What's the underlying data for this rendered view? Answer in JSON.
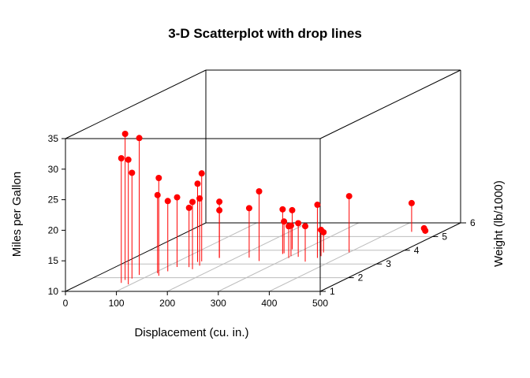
{
  "chart_data": {
    "type": "scatter",
    "title": "3-D Scatterplot with drop lines",
    "xlabel": "Displacement (cu. in.)",
    "ylabel": "Weight (lb/1000)",
    "zlabel": "Miles per Gallon",
    "xlim": [
      0,
      500
    ],
    "ylim": [
      1,
      6
    ],
    "zlim": [
      10,
      35
    ],
    "x_ticks": [
      0,
      100,
      200,
      300,
      400,
      500
    ],
    "y_ticks": [
      1,
      2,
      3,
      4,
      5,
      6
    ],
    "z_ticks": [
      10,
      15,
      20,
      25,
      30,
      35
    ],
    "grid": true,
    "point_color": "#ff0000",
    "drop_line_color": "#ff0000",
    "points": [
      {
        "x": 160,
        "y": 2.62,
        "z": 21.0
      },
      {
        "x": 160,
        "y": 2.875,
        "z": 21.0
      },
      {
        "x": 108,
        "y": 2.32,
        "z": 22.8
      },
      {
        "x": 258,
        "y": 3.215,
        "z": 21.4
      },
      {
        "x": 360,
        "y": 3.44,
        "z": 18.7
      },
      {
        "x": 225,
        "y": 3.46,
        "z": 18.1
      },
      {
        "x": 360,
        "y": 3.57,
        "z": 14.3
      },
      {
        "x": 146.7,
        "y": 3.19,
        "z": 24.4
      },
      {
        "x": 140.8,
        "y": 3.15,
        "z": 22.8
      },
      {
        "x": 167.6,
        "y": 3.44,
        "z": 19.2
      },
      {
        "x": 167.6,
        "y": 3.44,
        "z": 17.8
      },
      {
        "x": 275.8,
        "y": 4.07,
        "z": 16.4
      },
      {
        "x": 275.8,
        "y": 3.73,
        "z": 17.3
      },
      {
        "x": 275.8,
        "y": 3.78,
        "z": 15.2
      },
      {
        "x": 472,
        "y": 5.25,
        "z": 10.4
      },
      {
        "x": 460,
        "y": 5.424,
        "z": 10.4
      },
      {
        "x": 440,
        "y": 5.345,
        "z": 14.7
      },
      {
        "x": 78.7,
        "y": 2.2,
        "z": 32.4
      },
      {
        "x": 75.7,
        "y": 1.615,
        "z": 30.4
      },
      {
        "x": 71.1,
        "y": 1.835,
        "z": 33.9
      },
      {
        "x": 120.1,
        "y": 2.465,
        "z": 21.5
      },
      {
        "x": 318,
        "y": 3.52,
        "z": 15.5
      },
      {
        "x": 304,
        "y": 3.435,
        "z": 15.2
      },
      {
        "x": 350,
        "y": 3.84,
        "z": 13.3
      },
      {
        "x": 400,
        "y": 3.845,
        "z": 19.2
      },
      {
        "x": 79,
        "y": 1.935,
        "z": 27.3
      },
      {
        "x": 120.3,
        "y": 2.14,
        "z": 26.0
      },
      {
        "x": 95.1,
        "y": 1.513,
        "z": 30.4
      },
      {
        "x": 351,
        "y": 3.17,
        "z": 15.8
      },
      {
        "x": 145,
        "y": 2.77,
        "z": 19.7
      },
      {
        "x": 301,
        "y": 3.57,
        "z": 15.0
      },
      {
        "x": 121,
        "y": 2.78,
        "z": 21.4
      }
    ]
  }
}
